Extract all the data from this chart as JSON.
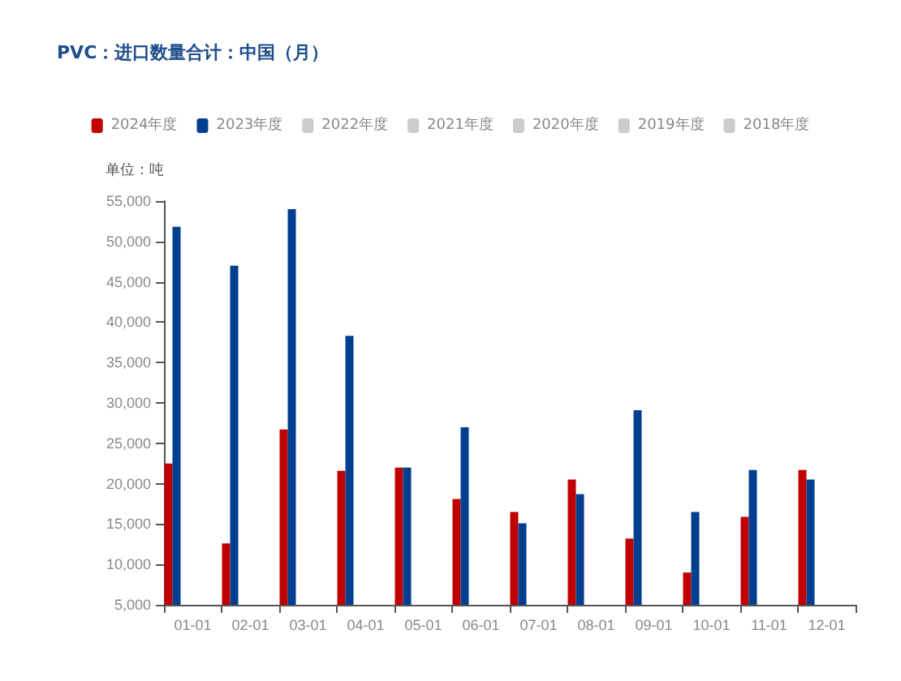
{
  "chart_data": {
    "type": "bar",
    "title": "PVC：进口数量合计：中国（月）",
    "ylabel": "单位：吨",
    "categories": [
      "01-01",
      "02-01",
      "03-01",
      "04-01",
      "05-01",
      "06-01",
      "07-01",
      "08-01",
      "09-01",
      "10-01",
      "11-01",
      "12-01"
    ],
    "series": [
      {
        "name": "2024年度",
        "color": "#c00000",
        "values": [
          22500,
          12600,
          26700,
          21600,
          22000,
          18100,
          16500,
          20500,
          13200,
          9000,
          15900,
          21700
        ]
      },
      {
        "name": "2023年度",
        "color": "#003f8f",
        "values": [
          51800,
          47000,
          54000,
          38300,
          22000,
          27000,
          15100,
          18700,
          29100,
          16500,
          21700,
          20500
        ]
      },
      {
        "name": "2022年度",
        "color": "#cccccc",
        "values": [
          null,
          null,
          null,
          null,
          null,
          null,
          null,
          null,
          null,
          null,
          null,
          null
        ]
      },
      {
        "name": "2021年度",
        "color": "#cccccc",
        "values": [
          null,
          null,
          null,
          null,
          null,
          null,
          null,
          null,
          null,
          null,
          null,
          null
        ]
      },
      {
        "name": "2020年度",
        "color": "#cccccc",
        "values": [
          null,
          null,
          null,
          null,
          null,
          null,
          null,
          null,
          null,
          null,
          null,
          null
        ]
      },
      {
        "name": "2019年度",
        "color": "#cccccc",
        "values": [
          null,
          null,
          null,
          null,
          null,
          null,
          null,
          null,
          null,
          null,
          null,
          null
        ]
      },
      {
        "name": "2018年度",
        "color": "#cccccc",
        "values": [
          null,
          null,
          null,
          null,
          null,
          null,
          null,
          null,
          null,
          null,
          null,
          null
        ]
      }
    ],
    "ylim": [
      5000,
      55000
    ],
    "yticks": [
      {
        "value": 5000,
        "label": "5,000"
      },
      {
        "value": 10000,
        "label": "10,000"
      },
      {
        "value": 15000,
        "label": "15,000"
      },
      {
        "value": 20000,
        "label": "20,000"
      },
      {
        "value": 25000,
        "label": "25,000"
      },
      {
        "value": 30000,
        "label": "30,000"
      },
      {
        "value": 35000,
        "label": "35,000"
      },
      {
        "value": 40000,
        "label": "40,000"
      },
      {
        "value": 45000,
        "label": "45,000"
      },
      {
        "value": 50000,
        "label": "50,000"
      },
      {
        "value": 55000,
        "label": "55,000"
      }
    ],
    "grid": false,
    "legend": "top"
  }
}
